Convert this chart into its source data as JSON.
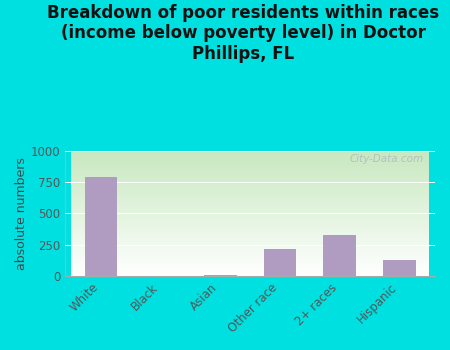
{
  "title": "Breakdown of poor residents within races\n(income below poverty level) in Doctor\nPhillips, FL",
  "categories": [
    "White",
    "Black",
    "Asian",
    "Other race",
    "2+ races",
    "Hispanic"
  ],
  "values": [
    790,
    0,
    13,
    220,
    330,
    130
  ],
  "bar_color": "#b09cc0",
  "ylabel": "absolute numbers",
  "ylim": [
    0,
    1000
  ],
  "yticks": [
    0,
    250,
    500,
    750,
    1000
  ],
  "background_outer": "#00e0e0",
  "watermark": "City-Data.com",
  "title_fontsize": 12,
  "ylabel_fontsize": 9,
  "tick_fontsize": 8.5
}
